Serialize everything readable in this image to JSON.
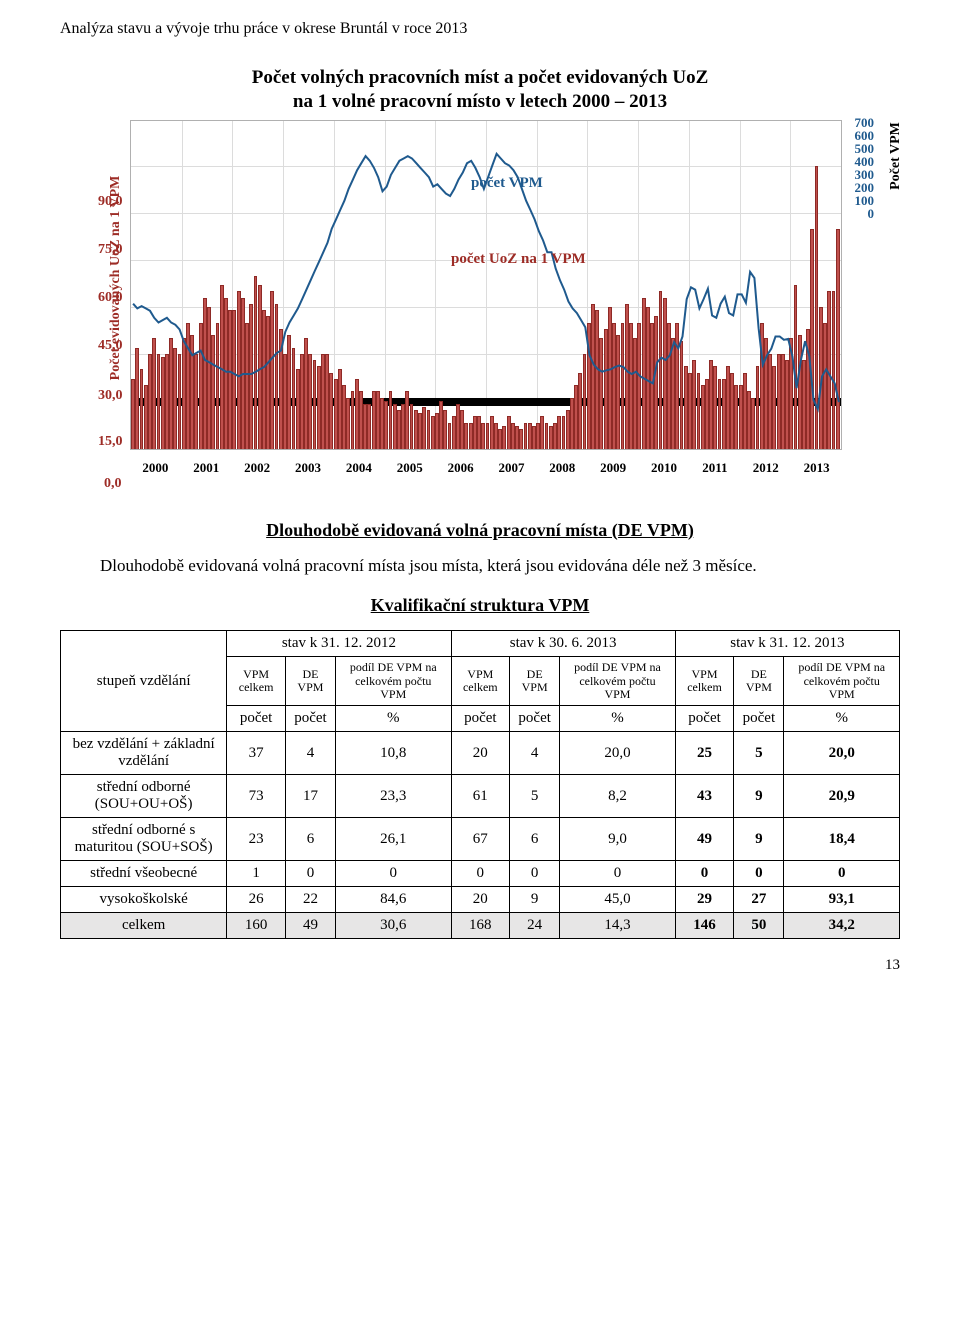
{
  "header": "Analýza stavu a vývoje trhu práce v okrese Bruntál v roce 2013",
  "chart": {
    "title_line1": "Počet volných pracovních míst a počet evidovaných UoZ",
    "title_line2": "na 1 volné pracovní místo v letech 2000 – 2013",
    "x_years": [
      "2000",
      "2001",
      "2002",
      "2003",
      "2004",
      "2005",
      "2006",
      "2007",
      "2008",
      "2009",
      "2010",
      "2011",
      "2012",
      "2013"
    ],
    "left_ticks": [
      "90,0",
      "75,0",
      "60,0",
      "45,0",
      "30,0",
      "15,0",
      "0,0"
    ],
    "right_ticks": [
      "700",
      "600",
      "500",
      "400",
      "300",
      "200",
      "100",
      "0"
    ],
    "left_axis_label": "Počet evidovaných UoZ na 1 VPM",
    "right_axis_label": "Počet VPM",
    "series_label_vpm": "počet VPM",
    "series_label_uoz": "počet UoZ na 1 VPM",
    "bar_color": "#c0504d",
    "border_color": "#8e2a26",
    "line_color": "#1f5a8e",
    "line_series_right_scale_max": 700,
    "left_scale_max": 105,
    "black_band_at_right_value": 100,
    "bars_uoz": [
      22,
      32,
      25,
      20,
      30,
      35,
      30,
      29,
      30,
      35,
      32,
      30,
      35,
      40,
      36,
      30,
      40,
      48,
      45,
      36,
      40,
      52,
      48,
      44,
      44,
      50,
      48,
      40,
      46,
      55,
      52,
      44,
      42,
      50,
      46,
      38,
      30,
      36,
      32,
      25,
      30,
      35,
      30,
      28,
      26,
      30,
      30,
      24,
      22,
      25,
      20,
      16,
      18,
      22,
      18,
      14,
      14,
      18,
      18,
      16,
      15,
      18,
      14,
      12,
      14,
      18,
      14,
      12,
      11,
      13,
      12,
      10,
      11,
      15,
      12,
      8,
      10,
      14,
      12,
      8,
      8,
      10,
      10,
      8,
      8,
      10,
      8,
      6,
      7,
      10,
      8,
      7,
      6,
      8,
      8,
      7,
      8,
      10,
      8,
      7,
      8,
      10,
      10,
      12,
      16,
      20,
      24,
      30,
      40,
      46,
      44,
      35,
      38,
      45,
      40,
      36,
      40,
      46,
      40,
      35,
      40,
      48,
      45,
      40,
      42,
      50,
      48,
      40,
      35,
      40,
      34,
      26,
      24,
      28,
      24,
      20,
      22,
      28,
      26,
      22,
      22,
      26,
      24,
      20,
      20,
      24,
      18,
      16,
      26,
      40,
      35,
      30,
      26,
      30,
      30,
      28,
      35,
      52,
      36,
      28,
      38,
      70,
      90,
      45,
      40,
      50,
      50,
      70
    ],
    "line_vpm": [
      310,
      300,
      305,
      300,
      295,
      280,
      270,
      275,
      280,
      270,
      265,
      255,
      230,
      215,
      200,
      205,
      210,
      190,
      185,
      180,
      175,
      170,
      165,
      165,
      160,
      155,
      160,
      160,
      160,
      165,
      170,
      175,
      185,
      195,
      205,
      210,
      250,
      270,
      285,
      300,
      320,
      340,
      360,
      380,
      400,
      420,
      440,
      470,
      490,
      510,
      530,
      555,
      575,
      595,
      610,
      625,
      615,
      600,
      580,
      550,
      560,
      585,
      600,
      615,
      620,
      625,
      620,
      610,
      600,
      590,
      580,
      560,
      565,
      555,
      545,
      540,
      555,
      575,
      590,
      610,
      615,
      600,
      580,
      555,
      580,
      605,
      630,
      620,
      610,
      605,
      595,
      580,
      555,
      530,
      510,
      490,
      465,
      445,
      420,
      420,
      385,
      360,
      340,
      315,
      300,
      290,
      275,
      260,
      200,
      180,
      170,
      165,
      168,
      170,
      175,
      178,
      175,
      165,
      160,
      165,
      155,
      150,
      145,
      140,
      185,
      195,
      190,
      200,
      228,
      215,
      240,
      320,
      345,
      340,
      300,
      320,
      342,
      285,
      280,
      310,
      325,
      290,
      285,
      330,
      330,
      312,
      378,
      365,
      258,
      180,
      200,
      214,
      240,
      240,
      233,
      235,
      198,
      130,
      190,
      230,
      198,
      105,
      85,
      155,
      170,
      155,
      140,
      100
    ]
  },
  "section1_title": "Dlouhodobě evidovaná volná pracovní místa (DE VPM)",
  "section1_para": "Dlouhodobě evidovaná volná pracovní místa jsou místa, která jsou evidována déle než 3 měsíce.",
  "section2_title": "Kvalifikační struktura VPM",
  "table": {
    "row_header_label": "stupeň vzdělání",
    "period_labels": [
      "stav k 31. 12. 2012",
      "stav k 30. 6. 2013",
      "stav k 31. 12. 2013"
    ],
    "col_group": [
      "VPM celkem",
      "DE VPM",
      "podíl DE VPM na celkovém počtu VPM"
    ],
    "unit_row": [
      "počet",
      "počet",
      "%",
      "počet",
      "počet",
      "%",
      "počet",
      "počet",
      "%"
    ],
    "rows": [
      {
        "label": "bez vzdělání + základní vzdělání",
        "cells": [
          "37",
          "4",
          "10,8",
          "20",
          "4",
          "20,0",
          "25",
          "5",
          "20,0"
        ]
      },
      {
        "label": "střední odborné (SOU+OU+OŠ)",
        "cells": [
          "73",
          "17",
          "23,3",
          "61",
          "5",
          "8,2",
          "43",
          "9",
          "20,9"
        ]
      },
      {
        "label": "střední odborné s maturitou (SOU+SOŠ)",
        "cells": [
          "23",
          "6",
          "26,1",
          "67",
          "6",
          "9,0",
          "49",
          "9",
          "18,4"
        ]
      },
      {
        "label": "střední všeobecné",
        "cells": [
          "1",
          "0",
          "0",
          "0",
          "0",
          "0",
          "0",
          "0",
          "0"
        ]
      },
      {
        "label": "vysokoškolské",
        "cells": [
          "26",
          "22",
          "84,6",
          "20",
          "9",
          "45,0",
          "29",
          "27",
          "93,1"
        ]
      }
    ],
    "sum_row": {
      "label": "celkem",
      "cells": [
        "160",
        "49",
        "30,6",
        "168",
        "24",
        "14,3",
        "146",
        "50",
        "34,2"
      ]
    }
  },
  "page_number": "13"
}
